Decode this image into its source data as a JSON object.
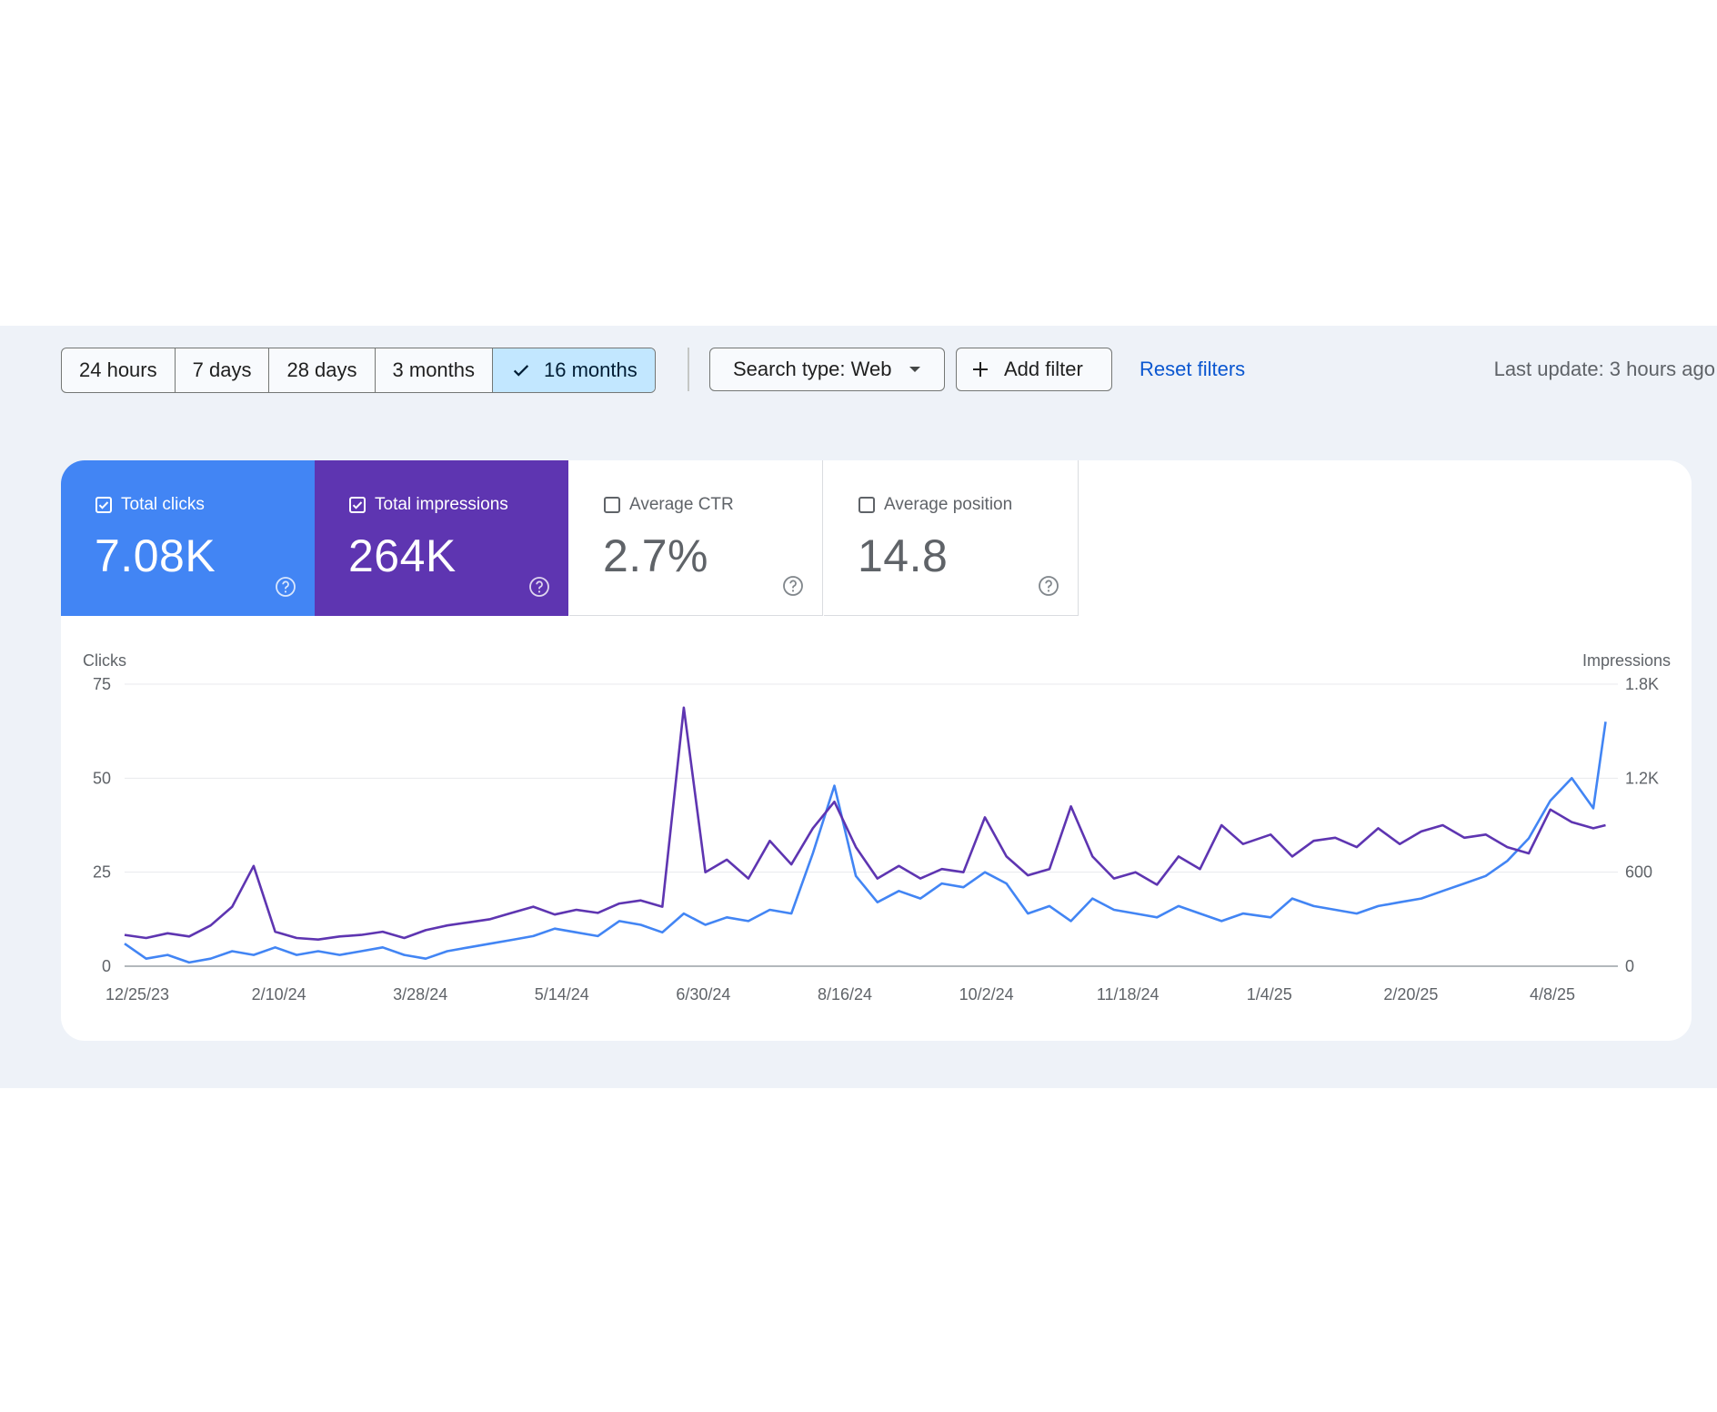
{
  "toolbar": {
    "date_ranges": [
      {
        "label": "24 hours",
        "selected": false
      },
      {
        "label": "7 days",
        "selected": false
      },
      {
        "label": "28 days",
        "selected": false
      },
      {
        "label": "3 months",
        "selected": false
      },
      {
        "label": "16 months",
        "selected": true
      }
    ],
    "search_type_label": "Search type: Web",
    "add_filter_label": "Add filter",
    "reset_filters_label": "Reset filters",
    "last_update": "Last update: 3 hours ago"
  },
  "metrics": [
    {
      "label": "Total clicks",
      "value": "7.08K",
      "checked": true,
      "color": "#4285f4"
    },
    {
      "label": "Total impressions",
      "value": "264K",
      "checked": true,
      "color": "#5e35b1"
    },
    {
      "label": "Average CTR",
      "value": "2.7%",
      "checked": false
    },
    {
      "label": "Average position",
      "value": "14.8",
      "checked": false
    }
  ],
  "colors": {
    "clicks": "#4285f4",
    "impressions": "#5e35b1",
    "accent_link": "#0b57d0",
    "selected_chip": "#c2e7ff"
  },
  "chart_data": {
    "type": "line",
    "left_axis": {
      "label": "Clicks",
      "ticks": [
        "0",
        "25",
        "50",
        "75"
      ],
      "range": [
        0,
        75
      ]
    },
    "right_axis": {
      "label": "Impressions",
      "ticks": [
        "0",
        "600",
        "1.2K",
        "1.8K"
      ],
      "range": [
        0,
        1800
      ]
    },
    "x_tick_labels": [
      "12/25/23",
      "2/10/24",
      "3/28/24",
      "5/14/24",
      "6/30/24",
      "8/16/24",
      "10/2/24",
      "11/18/24",
      "1/4/25",
      "2/20/25",
      "4/8/25"
    ],
    "x_range": [
      "2023-12-25",
      "2025-04-24"
    ],
    "grid": true,
    "series": [
      {
        "name": "Clicks",
        "axis": "left",
        "color": "#4285f4",
        "points": [
          [
            "2023-12-25",
            6
          ],
          [
            "2024-01-01",
            2
          ],
          [
            "2024-01-08",
            3
          ],
          [
            "2024-01-15",
            1
          ],
          [
            "2024-01-22",
            2
          ],
          [
            "2024-01-29",
            4
          ],
          [
            "2024-02-05",
            3
          ],
          [
            "2024-02-12",
            5
          ],
          [
            "2024-02-19",
            3
          ],
          [
            "2024-02-26",
            4
          ],
          [
            "2024-03-04",
            3
          ],
          [
            "2024-03-11",
            4
          ],
          [
            "2024-03-18",
            5
          ],
          [
            "2024-03-25",
            3
          ],
          [
            "2024-04-01",
            2
          ],
          [
            "2024-04-08",
            4
          ],
          [
            "2024-04-15",
            5
          ],
          [
            "2024-04-22",
            6
          ],
          [
            "2024-04-29",
            7
          ],
          [
            "2024-05-06",
            8
          ],
          [
            "2024-05-13",
            10
          ],
          [
            "2024-05-20",
            9
          ],
          [
            "2024-05-27",
            8
          ],
          [
            "2024-06-03",
            12
          ],
          [
            "2024-06-10",
            11
          ],
          [
            "2024-06-17",
            9
          ],
          [
            "2024-06-24",
            14
          ],
          [
            "2024-07-01",
            11
          ],
          [
            "2024-07-08",
            13
          ],
          [
            "2024-07-15",
            12
          ],
          [
            "2024-07-22",
            15
          ],
          [
            "2024-07-29",
            14
          ],
          [
            "2024-08-05",
            30
          ],
          [
            "2024-08-12",
            48
          ],
          [
            "2024-08-19",
            24
          ],
          [
            "2024-08-26",
            17
          ],
          [
            "2024-09-02",
            20
          ],
          [
            "2024-09-09",
            18
          ],
          [
            "2024-09-16",
            22
          ],
          [
            "2024-09-23",
            21
          ],
          [
            "2024-09-30",
            25
          ],
          [
            "2024-10-07",
            22
          ],
          [
            "2024-10-14",
            14
          ],
          [
            "2024-10-21",
            16
          ],
          [
            "2024-10-28",
            12
          ],
          [
            "2024-11-04",
            18
          ],
          [
            "2024-11-11",
            15
          ],
          [
            "2024-11-18",
            14
          ],
          [
            "2024-11-25",
            13
          ],
          [
            "2024-12-02",
            16
          ],
          [
            "2024-12-09",
            14
          ],
          [
            "2024-12-16",
            12
          ],
          [
            "2024-12-23",
            14
          ],
          [
            "2025-01-01",
            13
          ],
          [
            "2025-01-08",
            18
          ],
          [
            "2025-01-15",
            16
          ],
          [
            "2025-01-22",
            15
          ],
          [
            "2025-01-29",
            14
          ],
          [
            "2025-02-05",
            16
          ],
          [
            "2025-02-12",
            17
          ],
          [
            "2025-02-19",
            18
          ],
          [
            "2025-02-26",
            20
          ],
          [
            "2025-03-05",
            22
          ],
          [
            "2025-03-12",
            24
          ],
          [
            "2025-03-19",
            28
          ],
          [
            "2025-03-26",
            34
          ],
          [
            "2025-04-02",
            44
          ],
          [
            "2025-04-09",
            50
          ],
          [
            "2025-04-16",
            42
          ],
          [
            "2025-04-20",
            65
          ]
        ]
      },
      {
        "name": "Impressions",
        "axis": "right",
        "color": "#5e35b1",
        "points": [
          [
            "2023-12-25",
            200
          ],
          [
            "2024-01-01",
            180
          ],
          [
            "2024-01-08",
            210
          ],
          [
            "2024-01-15",
            190
          ],
          [
            "2024-01-22",
            260
          ],
          [
            "2024-01-29",
            380
          ],
          [
            "2024-02-05",
            640
          ],
          [
            "2024-02-12",
            220
          ],
          [
            "2024-02-19",
            180
          ],
          [
            "2024-02-26",
            170
          ],
          [
            "2024-03-04",
            190
          ],
          [
            "2024-03-11",
            200
          ],
          [
            "2024-03-18",
            220
          ],
          [
            "2024-03-25",
            180
          ],
          [
            "2024-04-01",
            230
          ],
          [
            "2024-04-08",
            260
          ],
          [
            "2024-04-15",
            280
          ],
          [
            "2024-04-22",
            300
          ],
          [
            "2024-04-29",
            340
          ],
          [
            "2024-05-06",
            380
          ],
          [
            "2024-05-13",
            330
          ],
          [
            "2024-05-20",
            360
          ],
          [
            "2024-05-27",
            340
          ],
          [
            "2024-06-03",
            400
          ],
          [
            "2024-06-10",
            420
          ],
          [
            "2024-06-17",
            380
          ],
          [
            "2024-06-24",
            1650
          ],
          [
            "2024-07-01",
            600
          ],
          [
            "2024-07-08",
            680
          ],
          [
            "2024-07-15",
            560
          ],
          [
            "2024-07-22",
            800
          ],
          [
            "2024-07-29",
            650
          ],
          [
            "2024-08-05",
            880
          ],
          [
            "2024-08-12",
            1050
          ],
          [
            "2024-08-19",
            760
          ],
          [
            "2024-08-26",
            560
          ],
          [
            "2024-09-02",
            640
          ],
          [
            "2024-09-09",
            560
          ],
          [
            "2024-09-16",
            620
          ],
          [
            "2024-09-23",
            600
          ],
          [
            "2024-09-30",
            950
          ],
          [
            "2024-10-07",
            700
          ],
          [
            "2024-10-14",
            580
          ],
          [
            "2024-10-21",
            620
          ],
          [
            "2024-10-28",
            1020
          ],
          [
            "2024-11-04",
            700
          ],
          [
            "2024-11-11",
            560
          ],
          [
            "2024-11-18",
            600
          ],
          [
            "2024-11-25",
            520
          ],
          [
            "2024-12-02",
            700
          ],
          [
            "2024-12-09",
            620
          ],
          [
            "2024-12-16",
            900
          ],
          [
            "2024-12-23",
            780
          ],
          [
            "2025-01-01",
            840
          ],
          [
            "2025-01-08",
            700
          ],
          [
            "2025-01-15",
            800
          ],
          [
            "2025-01-22",
            820
          ],
          [
            "2025-01-29",
            760
          ],
          [
            "2025-02-05",
            880
          ],
          [
            "2025-02-12",
            780
          ],
          [
            "2025-02-19",
            860
          ],
          [
            "2025-02-26",
            900
          ],
          [
            "2025-03-05",
            820
          ],
          [
            "2025-03-12",
            840
          ],
          [
            "2025-03-19",
            760
          ],
          [
            "2025-03-26",
            720
          ],
          [
            "2025-04-02",
            1000
          ],
          [
            "2025-04-09",
            920
          ],
          [
            "2025-04-16",
            880
          ],
          [
            "2025-04-20",
            900
          ]
        ]
      }
    ]
  }
}
